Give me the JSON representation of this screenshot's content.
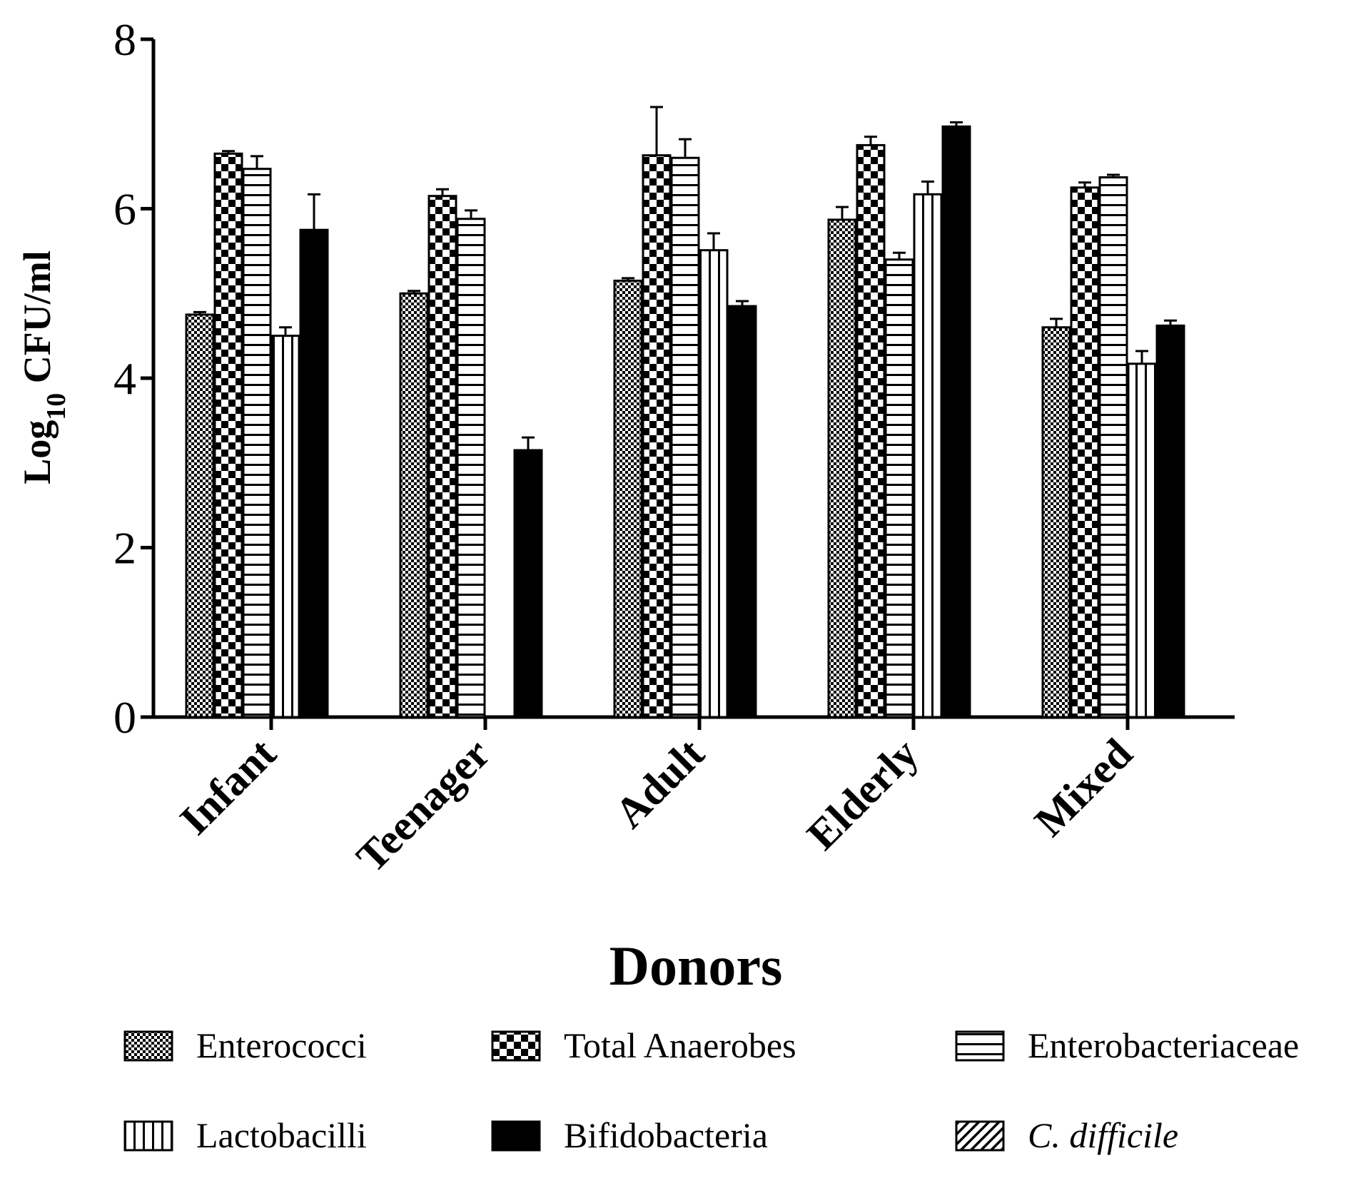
{
  "chart_data": {
    "type": "bar",
    "title": "",
    "xlabel": "Donors",
    "ylabel_main": "Log",
    "ylabel_sub": "10",
    "ylabel_rest": " CFU/ml",
    "ylim": [
      0,
      8
    ],
    "yticks": [
      "0",
      "2",
      "4",
      "6",
      "8"
    ],
    "categories": [
      "Infant",
      "Teenager",
      "Adult",
      "Elderly",
      "Mixed"
    ],
    "legend_position": "bottom",
    "series": [
      {
        "name": "Enterococci",
        "pattern": "fine-checker",
        "italic": false,
        "values": [
          4.75,
          5.0,
          5.15,
          5.87,
          4.6
        ],
        "errors": [
          0.03,
          0.03,
          0.03,
          0.15,
          0.1
        ]
      },
      {
        "name": "Total Anaerobes",
        "pattern": "checker",
        "italic": false,
        "values": [
          6.65,
          6.15,
          6.63,
          6.75,
          6.25
        ],
        "errors": [
          0.03,
          0.08,
          0.57,
          0.1,
          0.06
        ]
      },
      {
        "name": "Enterobacteriaceae",
        "pattern": "horizontal",
        "italic": false,
        "values": [
          6.47,
          5.88,
          6.6,
          5.4,
          6.37
        ],
        "errors": [
          0.15,
          0.1,
          0.22,
          0.08,
          0.03
        ]
      },
      {
        "name": "Lactobacilli",
        "pattern": "vertical",
        "italic": false,
        "values": [
          4.5,
          0,
          5.51,
          6.17,
          4.17
        ],
        "errors": [
          0.1,
          0,
          0.2,
          0.15,
          0.15
        ]
      },
      {
        "name": "Bifidobacteria",
        "pattern": "solid",
        "italic": false,
        "values": [
          5.75,
          3.15,
          4.85,
          6.97,
          4.62
        ],
        "errors": [
          0.42,
          0.15,
          0.06,
          0.05,
          0.06
        ]
      },
      {
        "name": "C. difficile",
        "pattern": "diagonal",
        "italic": true,
        "values": [
          0,
          0,
          0,
          0,
          0
        ],
        "errors": [
          0,
          0,
          0,
          0,
          0
        ]
      }
    ]
  }
}
